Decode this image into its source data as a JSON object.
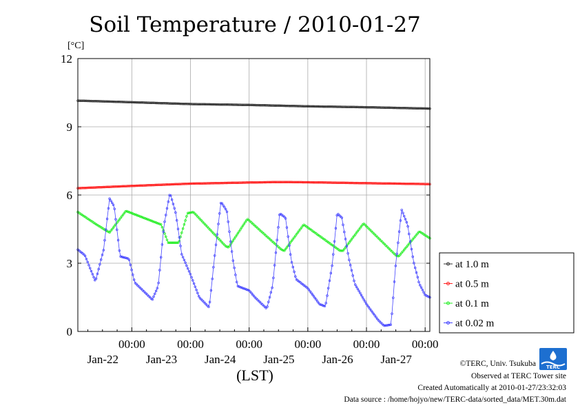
{
  "chart_data": {
    "type": "line",
    "title": "Soil Temperature / 2010-01-27",
    "ylabel": "[°C]",
    "xlabel": "(LST)",
    "ylim": [
      0,
      12
    ],
    "yticks": [
      "0",
      "3",
      "6",
      "9",
      "12"
    ],
    "xlim": [
      -0.92,
      5.08
    ],
    "xticks": [
      {
        "time": "00:00",
        "date": "Jan-22"
      },
      {
        "time": "00:00",
        "date": "Jan-23"
      },
      {
        "time": "00:00",
        "date": "Jan-24"
      },
      {
        "time": "00:00",
        "date": "Jan-25"
      },
      {
        "time": "00:00",
        "date": "Jan-26"
      },
      {
        "time": "00:00",
        "date": "Jan-27"
      }
    ],
    "grid": true,
    "legend_position": "right",
    "series": [
      {
        "name": "at 1.0 m",
        "color": "#333333",
        "points": [
          [
            -0.92,
            10.15
          ],
          [
            0,
            10.08
          ],
          [
            1,
            10.0
          ],
          [
            2,
            9.96
          ],
          [
            3,
            9.9
          ],
          [
            4,
            9.86
          ],
          [
            5.08,
            9.8
          ]
        ]
      },
      {
        "name": "at 0.5 m",
        "color": "#ff2020",
        "points": [
          [
            -0.92,
            6.3
          ],
          [
            0,
            6.4
          ],
          [
            1,
            6.5
          ],
          [
            2,
            6.55
          ],
          [
            2.5,
            6.57
          ],
          [
            3,
            6.56
          ],
          [
            4,
            6.52
          ],
          [
            5.08,
            6.48
          ]
        ]
      },
      {
        "name": "at 0.1 m",
        "color": "#22ee22",
        "points": [
          [
            -0.92,
            5.25
          ],
          [
            -0.6,
            4.7
          ],
          [
            -0.38,
            4.35
          ],
          [
            -0.1,
            5.3
          ],
          [
            0.5,
            4.7
          ],
          [
            0.62,
            3.9
          ],
          [
            0.8,
            3.9
          ],
          [
            0.95,
            5.2
          ],
          [
            1.05,
            5.25
          ],
          [
            1.6,
            3.75
          ],
          [
            1.65,
            3.7
          ],
          [
            1.97,
            4.95
          ],
          [
            2.55,
            3.6
          ],
          [
            2.6,
            3.55
          ],
          [
            2.93,
            4.7
          ],
          [
            3.55,
            3.55
          ],
          [
            3.6,
            3.55
          ],
          [
            3.95,
            4.75
          ],
          [
            4.5,
            3.35
          ],
          [
            4.55,
            3.3
          ],
          [
            4.9,
            4.4
          ],
          [
            5.08,
            4.1
          ]
        ]
      },
      {
        "name": "at 0.02 m",
        "color": "#4444ff",
        "points": [
          [
            -0.92,
            3.6
          ],
          [
            -0.8,
            3.35
          ],
          [
            -0.62,
            2.2
          ],
          [
            -0.48,
            3.6
          ],
          [
            -0.38,
            5.85
          ],
          [
            -0.3,
            5.5
          ],
          [
            -0.2,
            3.3
          ],
          [
            -0.05,
            3.2
          ],
          [
            0.05,
            2.15
          ],
          [
            0.35,
            1.4
          ],
          [
            0.45,
            2.0
          ],
          [
            0.55,
            4.7
          ],
          [
            0.65,
            6.1
          ],
          [
            0.75,
            5.2
          ],
          [
            0.85,
            3.4
          ],
          [
            1.0,
            2.5
          ],
          [
            1.15,
            1.5
          ],
          [
            1.32,
            1.05
          ],
          [
            1.42,
            3.5
          ],
          [
            1.52,
            5.7
          ],
          [
            1.62,
            5.3
          ],
          [
            1.72,
            3.2
          ],
          [
            1.8,
            2.0
          ],
          [
            2.0,
            1.8
          ],
          [
            2.1,
            1.5
          ],
          [
            2.3,
            1.0
          ],
          [
            2.4,
            2.0
          ],
          [
            2.52,
            5.2
          ],
          [
            2.62,
            5.0
          ],
          [
            2.72,
            3.1
          ],
          [
            2.8,
            2.3
          ],
          [
            3.0,
            1.9
          ],
          [
            3.2,
            1.2
          ],
          [
            3.3,
            1.1
          ],
          [
            3.42,
            3.0
          ],
          [
            3.5,
            5.2
          ],
          [
            3.58,
            5.0
          ],
          [
            3.7,
            3.2
          ],
          [
            3.8,
            2.1
          ],
          [
            4.0,
            1.2
          ],
          [
            4.2,
            0.5
          ],
          [
            4.3,
            0.25
          ],
          [
            4.42,
            0.3
          ],
          [
            4.5,
            3.0
          ],
          [
            4.6,
            5.35
          ],
          [
            4.7,
            4.7
          ],
          [
            4.8,
            3.1
          ],
          [
            4.9,
            2.1
          ],
          [
            5.0,
            1.6
          ],
          [
            5.08,
            1.5
          ]
        ]
      }
    ]
  },
  "footer": {
    "copyright": "©TERC, Univ. Tsukuba",
    "observed": "Observed at TERC Tower site",
    "created": "Created Automatically at 2010-01-27/23:32:03",
    "source": "Data source : /home/hojyo/new/TERC-data/sorted_data/MET.30m.dat",
    "logo_text": "TERC"
  }
}
